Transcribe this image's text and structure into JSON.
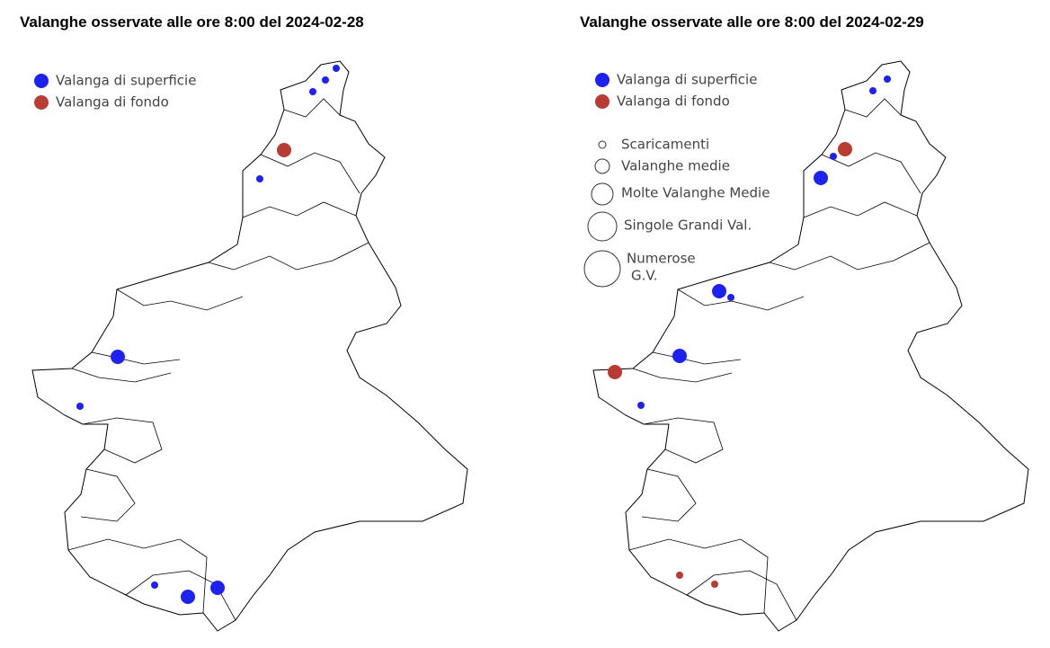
{
  "maps": [
    {
      "title": "Valanghe osservate alle ore 8:00 del 2024-02-28",
      "legend": [
        {
          "label": "Valanga di superficie",
          "color": "#1e22f0"
        },
        {
          "label": "Valanga di fondo",
          "color": "#b83c33"
        }
      ]
    },
    {
      "title": "Valanghe osservate alle ore 8:00 del 2024-02-29",
      "legend": [
        {
          "label": "Valanga di superficie",
          "color": "#1e22f0"
        },
        {
          "label": "Valanga di fondo",
          "color": "#b83c33"
        }
      ],
      "size_legend": [
        "Scaricamenti",
        "Valanghe medie",
        "Molte Valanghe Medie",
        "Singole Grandi Val.",
        [
          "Numerose",
          "G.V."
        ]
      ]
    }
  ]
}
